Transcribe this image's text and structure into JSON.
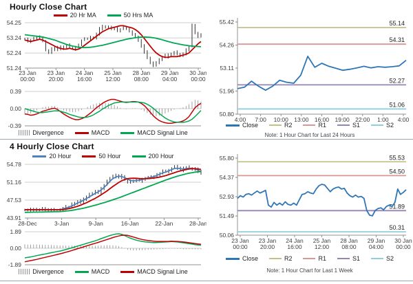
{
  "notes_meta": {
    "section_divider_color": "#9aa5b2"
  },
  "chart_data": [
    {
      "id": "hourly-main",
      "type": "hlc-bars+ma-lines",
      "panel_title": "Hourly Close Chart",
      "y_ticks": [
        54.25,
        53.24,
        52.24,
        51.24
      ],
      "x_ticks": [
        "23 Jan|00:00",
        "23 Jan|20:00",
        "24 Jan|16:00",
        "25 Jan|12:00",
        "28 Jan|08:00",
        "29 Jan|04:00",
        "30 Jan|00:00"
      ],
      "grid": true,
      "series": [
        {
          "name": "Close",
          "type": "bars",
          "color": "#1c1c1c",
          "values": [
            53.15,
            53.0,
            53.1,
            53.2,
            53.3,
            53.2,
            53.0,
            52.45,
            52.3,
            52.55,
            52.45,
            52.65,
            52.5,
            52.65,
            52.8,
            52.6,
            52.5,
            52.6,
            52.8,
            53.1,
            53.2,
            53.15,
            53.3,
            53.2,
            53.5,
            53.85,
            54.0,
            53.9,
            54.0,
            53.8,
            53.85,
            53.7,
            53.8,
            53.95,
            53.85,
            53.7,
            53.5,
            53.3,
            53.1,
            52.7,
            52.3,
            51.9,
            51.55,
            51.4,
            51.6,
            51.8,
            51.95,
            52.1,
            52.0,
            52.15,
            52.3,
            52.15,
            52.05,
            52.2,
            52.45,
            52.7,
            54.1,
            53.6,
            53.35,
            53.5
          ]
        },
        {
          "name": "20 Hr MA",
          "type": "line",
          "color": "#bf0000",
          "values": [
            53.1,
            53.05,
            53.0,
            53.05,
            53.1,
            53.15,
            53.1,
            53.0,
            52.9,
            52.8,
            52.7,
            52.6,
            52.55,
            52.5,
            52.5,
            52.55,
            52.5,
            52.45,
            52.5,
            52.6,
            52.75,
            52.9,
            53.05,
            53.2,
            53.35,
            53.5,
            53.65,
            53.75,
            53.85,
            53.9,
            53.95,
            54.0,
            54.05,
            54.05,
            54.0,
            53.95,
            53.9,
            53.8,
            53.65,
            53.45,
            53.2,
            52.95,
            52.7,
            52.45,
            52.25,
            52.1,
            52.0,
            51.95,
            51.95,
            52.0,
            52.0,
            52.0,
            52.05,
            52.1,
            52.15,
            52.25,
            52.45,
            52.65,
            52.85,
            53.0
          ]
        },
        {
          "name": "50 Hrs MA",
          "type": "line",
          "color": "#00a651",
          "values": [
            53.45,
            53.43,
            53.4,
            53.38,
            53.35,
            53.33,
            53.3,
            53.25,
            53.2,
            53.15,
            53.1,
            53.03,
            52.95,
            52.88,
            52.8,
            52.75,
            52.7,
            52.66,
            52.62,
            52.61,
            52.6,
            52.61,
            52.62,
            52.65,
            52.68,
            52.72,
            52.75,
            52.8,
            52.85,
            52.9,
            52.95,
            53.0,
            53.05,
            53.1,
            53.15,
            53.19,
            53.22,
            53.25,
            53.28,
            53.29,
            53.3,
            53.29,
            53.28,
            53.25,
            53.22,
            53.17,
            53.12,
            53.06,
            53.0,
            52.95,
            52.9,
            52.86,
            52.82,
            52.78,
            52.75,
            52.72,
            52.7,
            52.68,
            52.67,
            52.66
          ]
        }
      ]
    },
    {
      "id": "hourly-macd",
      "type": "macd",
      "y_ticks": [
        0.39,
        0.0,
        -0.39
      ],
      "series": [
        {
          "name": "Divergence",
          "type": "bars-diff",
          "color": "#8c8c8c"
        },
        {
          "name": "MACD",
          "type": "line",
          "color": "#bf0000",
          "values": [
            -0.12,
            -0.13,
            -0.15,
            -0.14,
            -0.12,
            -0.09,
            -0.06,
            -0.04,
            -0.02,
            0.0,
            0.01,
            -0.02,
            -0.07,
            -0.12,
            -0.16,
            -0.2,
            -0.23,
            -0.25,
            -0.25,
            -0.23,
            -0.2,
            -0.15,
            -0.1,
            -0.04,
            0.02,
            0.07,
            0.12,
            0.16,
            0.19,
            0.21,
            0.21,
            0.19,
            0.17,
            0.15,
            0.14,
            0.15,
            0.16,
            0.16,
            0.15,
            0.12,
            0.07,
            0.0,
            -0.08,
            -0.16,
            -0.22,
            -0.27,
            -0.3,
            -0.32,
            -0.33,
            -0.33,
            -0.32,
            -0.31,
            -0.3,
            -0.28,
            -0.24,
            -0.18,
            -0.08,
            0.02,
            0.08,
            0.12
          ]
        },
        {
          "name": "MACD Signal Line",
          "type": "line",
          "color": "#00a651",
          "values": [
            0.0,
            -0.02,
            -0.04,
            -0.06,
            -0.08,
            -0.09,
            -0.09,
            -0.08,
            -0.07,
            -0.06,
            -0.05,
            -0.05,
            -0.06,
            -0.08,
            -0.1,
            -0.13,
            -0.15,
            -0.17,
            -0.19,
            -0.2,
            -0.2,
            -0.19,
            -0.17,
            -0.14,
            -0.1,
            -0.06,
            -0.01,
            0.03,
            0.07,
            0.1,
            0.13,
            0.14,
            0.15,
            0.15,
            0.15,
            0.15,
            0.15,
            0.15,
            0.15,
            0.14,
            0.13,
            0.1,
            0.06,
            0.01,
            -0.05,
            -0.11,
            -0.16,
            -0.21,
            -0.25,
            -0.28,
            -0.3,
            -0.31,
            -0.31,
            -0.31,
            -0.3,
            -0.28,
            -0.24,
            -0.18,
            -0.11,
            -0.04
          ]
        }
      ]
    },
    {
      "id": "hourly-pivot",
      "type": "line+levels",
      "y_ticks": [
        55.42,
        54.26,
        53.11,
        51.96,
        50.8
      ],
      "x_ticks": [
        "4:00",
        "7:00",
        "10:00",
        "13:00",
        "16:00",
        "19:00",
        "22:00",
        "1:00",
        "4:00"
      ],
      "levels": [
        {
          "name": "R2",
          "value": 55.14,
          "color": "#c3c08b"
        },
        {
          "name": "R1",
          "value": 54.31,
          "color": "#d99694"
        },
        {
          "name": "S1",
          "value": 52.27,
          "color": "#9583b5"
        },
        {
          "name": "S2",
          "value": 51.06,
          "color": "#92cddc"
        }
      ],
      "series": [
        {
          "name": "Close",
          "type": "line",
          "color": "#2e75b6",
          "values": [
            52.08,
            52.15,
            52.45,
            52.2,
            52.0,
            52.2,
            52.5,
            52.4,
            52.35,
            52.75,
            53.7,
            53.15,
            53.35,
            53.2,
            53.1,
            53.0,
            53.05,
            53.12,
            53.2,
            53.12,
            53.18,
            53.15,
            53.18,
            53.22,
            53.5
          ]
        }
      ],
      "note": "Note: 1 Hour Chart for Last 24 Hours"
    },
    {
      "id": "four-hourly-main",
      "type": "hlc-bars+ma-lines",
      "panel_title": "4 Hourly Close Chart",
      "y_ticks": [
        54.78,
        51.16,
        47.53,
        43.91
      ],
      "x_ticks": [
        "28-Dec",
        "3-Jan",
        "9-Jan",
        "16-Jan",
        "22-Jan",
        "28-Jan"
      ],
      "grid": true,
      "series": [
        {
          "name": "Close",
          "type": "bars",
          "color": "#1c1c1c",
          "values": [
            45.6,
            45.45,
            45.7,
            45.5,
            45.65,
            45.55,
            45.7,
            45.6,
            45.5,
            45.65,
            45.55,
            45.6,
            45.55,
            45.9,
            46.2,
            46.0,
            46.6,
            46.9,
            47.3,
            47.1,
            47.7,
            48.1,
            48.6,
            48.9,
            49.3,
            49.0,
            49.9,
            50.6,
            51.3,
            52.0,
            52.5,
            52.3,
            52.6,
            52.2,
            51.7,
            51.3,
            51.2,
            51.5,
            51.65,
            51.5,
            51.8,
            52.0,
            52.25,
            52.1,
            52.4,
            52.7,
            53.0,
            53.3,
            53.2,
            53.6,
            54.0,
            54.3,
            53.9,
            53.6,
            53.9,
            54.2,
            54.0,
            53.9,
            53.7,
            53.2,
            52.9
          ]
        },
        {
          "name": "20 Hour",
          "type": "line",
          "color": "#4f81bd",
          "values": [
            45.55,
            45.57,
            45.6,
            45.58,
            45.6,
            45.6,
            45.62,
            45.62,
            45.58,
            45.58,
            45.58,
            45.59,
            45.6,
            45.75,
            45.95,
            46.1,
            46.35,
            46.62,
            46.95,
            47.2,
            47.5,
            47.85,
            48.2,
            48.55,
            48.9,
            49.2,
            49.6,
            50.1,
            50.7,
            51.35,
            51.9,
            52.2,
            52.4,
            52.3,
            52.1,
            51.8,
            51.5,
            51.45,
            51.5,
            51.55,
            51.7,
            51.88,
            52.05,
            52.15,
            52.3,
            52.55,
            52.8,
            53.05,
            53.2,
            53.45,
            53.7,
            53.95,
            54.0,
            53.9,
            53.8,
            53.95,
            54.0,
            53.95,
            53.85,
            53.6,
            53.3
          ]
        },
        {
          "name": "50 Hour",
          "type": "line",
          "color": "#bf0000",
          "values": [
            45.6,
            45.59,
            45.58,
            45.58,
            45.57,
            45.57,
            45.57,
            45.57,
            45.57,
            45.58,
            45.58,
            45.58,
            45.58,
            45.62,
            45.7,
            45.8,
            45.95,
            46.1,
            46.3,
            46.5,
            46.75,
            47.0,
            47.3,
            47.6,
            47.9,
            48.25,
            48.6,
            49.0,
            49.4,
            49.85,
            50.3,
            50.7,
            51.1,
            51.45,
            51.7,
            51.87,
            51.95,
            51.97,
            51.95,
            51.9,
            51.85,
            51.87,
            51.9,
            51.95,
            52.0,
            52.1,
            52.2,
            52.35,
            52.5,
            52.7,
            52.9,
            53.1,
            53.3,
            53.45,
            53.6,
            53.73,
            53.85,
            53.9,
            53.9,
            53.83,
            53.75
          ]
        },
        {
          "name": "200 Hour",
          "type": "line",
          "color": "#00a651",
          "values": [
            45.05,
            45.06,
            45.08,
            45.09,
            45.1,
            45.11,
            45.12,
            45.14,
            45.15,
            45.17,
            45.18,
            45.19,
            45.2,
            45.25,
            45.32,
            45.38,
            45.45,
            45.55,
            45.68,
            45.78,
            45.9,
            46.04,
            46.2,
            46.35,
            46.5,
            46.67,
            46.85,
            47.02,
            47.2,
            47.4,
            47.6,
            47.8,
            48.0,
            48.22,
            48.45,
            48.67,
            48.9,
            49.12,
            49.35,
            49.57,
            49.8,
            50.02,
            50.25,
            50.47,
            50.7,
            50.92,
            51.15,
            51.37,
            51.6,
            51.8,
            52.0,
            52.2,
            52.4,
            52.55,
            52.7,
            52.85,
            53.0,
            53.1,
            53.2,
            53.28,
            53.35
          ]
        }
      ]
    },
    {
      "id": "four-hourly-macd",
      "type": "macd",
      "y_ticks": [
        1.89,
        0.0,
        -1.89
      ],
      "series": [
        {
          "name": "Divergence",
          "type": "bars-diff",
          "color": "#8c8c8c"
        },
        {
          "name": "MACD",
          "type": "line",
          "color": "#00a651",
          "values": [
            -1.1,
            -1.05,
            -1.0,
            -0.92,
            -0.85,
            -0.78,
            -0.72,
            -0.65,
            -0.58,
            -0.51,
            -0.45,
            -0.38,
            -0.32,
            -0.24,
            -0.15,
            -0.05,
            0.05,
            0.15,
            0.25,
            0.35,
            0.45,
            0.55,
            0.65,
            0.75,
            0.85,
            0.97,
            1.1,
            1.22,
            1.35,
            1.46,
            1.55,
            1.62,
            1.65,
            1.6,
            1.45,
            1.3,
            1.15,
            1.03,
            0.92,
            0.84,
            0.78,
            0.73,
            0.7,
            0.67,
            0.65,
            0.66,
            0.68,
            0.7,
            0.72,
            0.74,
            0.76,
            0.74,
            0.72,
            0.67,
            0.62,
            0.57,
            0.52,
            0.47,
            0.42,
            0.38,
            0.35
          ]
        },
        {
          "name": "MACD Signal Line",
          "type": "line",
          "color": "#bf0000",
          "values": [
            -1.55,
            -1.48,
            -1.42,
            -1.35,
            -1.28,
            -1.2,
            -1.12,
            -1.04,
            -0.96,
            -0.88,
            -0.8,
            -0.72,
            -0.64,
            -0.55,
            -0.46,
            -0.36,
            -0.26,
            -0.16,
            -0.05,
            0.05,
            0.16,
            0.26,
            0.37,
            0.47,
            0.57,
            0.67,
            0.78,
            0.89,
            1.0,
            1.11,
            1.22,
            1.32,
            1.4,
            1.48,
            1.5,
            1.48,
            1.38,
            1.28,
            1.18,
            1.08,
            1.0,
            0.94,
            0.88,
            0.84,
            0.8,
            0.78,
            0.78,
            0.78,
            0.78,
            0.79,
            0.8,
            0.79,
            0.78,
            0.75,
            0.72,
            0.68,
            0.63,
            0.58,
            0.53,
            0.49,
            0.46
          ]
        }
      ]
    },
    {
      "id": "four-hourly-pivot",
      "type": "line+levels",
      "y_ticks": [
        55.8,
        54.37,
        52.93,
        51.49,
        50.06
      ],
      "x_ticks": [
        "23 Jan|00:00",
        "23 Jan|20:00",
        "24 Jan|16:00",
        "25 Jan|12:00",
        "28 Jan|08:00",
        "29 Jan|04:00",
        "30 Jan|00:00"
      ],
      "levels": [
        {
          "name": "R2",
          "value": 55.53,
          "color": "#c3c08b"
        },
        {
          "name": "R1",
          "value": 54.5,
          "color": "#d99694"
        },
        {
          "name": "S1",
          "value": 51.89,
          "color": "#9583b5"
        },
        {
          "name": "S2",
          "value": 50.31,
          "color": "#92cddc"
        }
      ],
      "series": [
        {
          "name": "Close",
          "type": "line",
          "color": "#2e75b6",
          "values": [
            52.8,
            53.0,
            52.9,
            53.1,
            53.15,
            53.05,
            53.2,
            53.35,
            53.2,
            53.3,
            53.4,
            52.3,
            52.15,
            52.5,
            52.3,
            52.45,
            52.3,
            52.55,
            52.35,
            52.3,
            52.45,
            52.3,
            52.7,
            53.1,
            53.15,
            53.3,
            53.2,
            53.15,
            53.5,
            53.75,
            53.85,
            53.8,
            53.55,
            53.3,
            53.5,
            53.6,
            53.65,
            53.5,
            53.55,
            53.2,
            53.0,
            52.9,
            53.05,
            52.9,
            52.95,
            52.8,
            51.9,
            51.55,
            51.5,
            51.9,
            52.05,
            52.1,
            51.95,
            52.2,
            52.3,
            52.2,
            52.5,
            53.5,
            53.1,
            53.25,
            53.45
          ]
        }
      ],
      "note": "Note: 1 Hour Chart for Last 1 Week"
    }
  ]
}
